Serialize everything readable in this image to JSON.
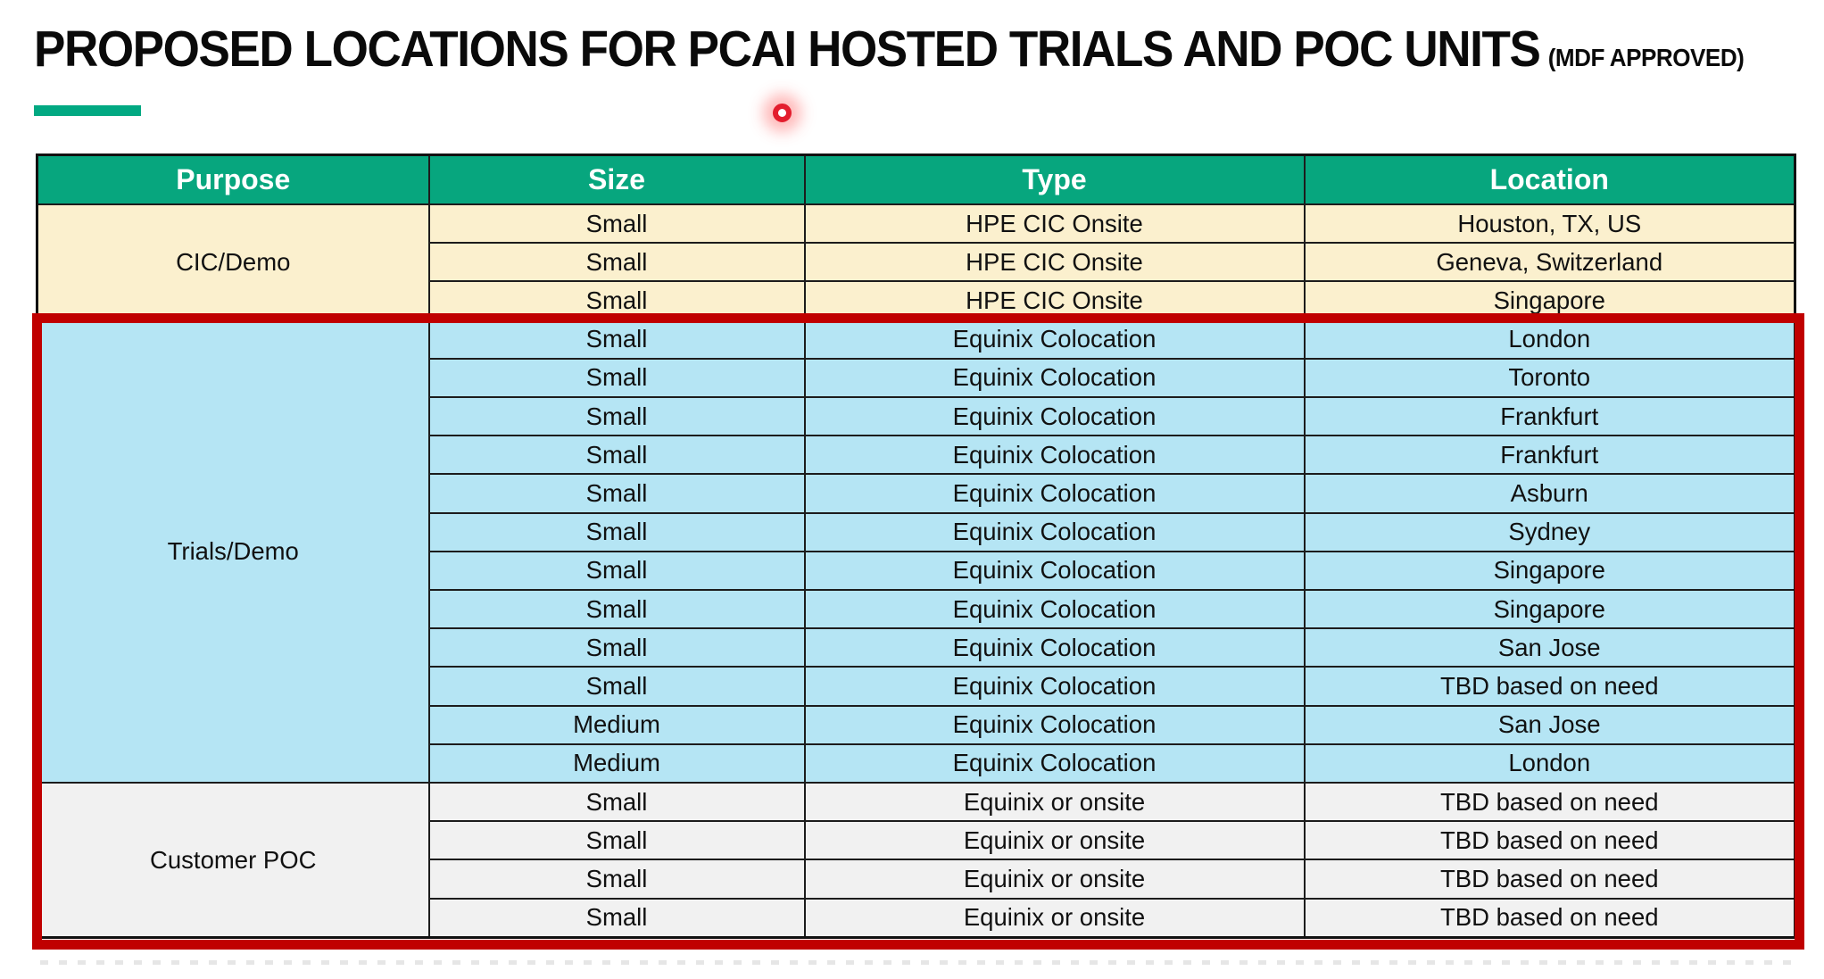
{
  "title": {
    "main": "PROPOSED LOCATIONS FOR PCAI HOSTED TRIALS AND POC UNITS",
    "suffix": "(MDF APPROVED)"
  },
  "colors": {
    "header_bg": "#07a67e",
    "accent_underline": "#01a982",
    "highlight_border": "#c00000",
    "group_cic_bg": "#fbf0ce",
    "group_trials_bg": "#b5e5f4",
    "group_poc_bg": "#f1f1f1"
  },
  "table": {
    "columns": [
      "Purpose",
      "Size",
      "Type",
      "Location"
    ],
    "groups": [
      {
        "purpose": "CIC/Demo",
        "bg": "#fbf0ce",
        "highlighted": false,
        "rows": [
          [
            "Small",
            "HPE CIC Onsite",
            "Houston, TX, US"
          ],
          [
            "Small",
            "HPE CIC Onsite",
            "Geneva, Switzerland"
          ],
          [
            "Small",
            "HPE CIC Onsite",
            "Singapore"
          ]
        ]
      },
      {
        "purpose": "Trials/Demo",
        "bg": "#b5e5f4",
        "highlighted": true,
        "rows": [
          [
            "Small",
            "Equinix Colocation",
            "London"
          ],
          [
            "Small",
            "Equinix Colocation",
            "Toronto"
          ],
          [
            "Small",
            "Equinix Colocation",
            "Frankfurt"
          ],
          [
            "Small",
            "Equinix Colocation",
            "Frankfurt"
          ],
          [
            "Small",
            "Equinix Colocation",
            "Asburn"
          ],
          [
            "Small",
            "Equinix Colocation",
            "Sydney"
          ],
          [
            "Small",
            "Equinix Colocation",
            "Singapore"
          ],
          [
            "Small",
            "Equinix Colocation",
            "Singapore"
          ],
          [
            "Small",
            "Equinix Colocation",
            "San Jose"
          ],
          [
            "Small",
            "Equinix Colocation",
            "TBD based on need"
          ],
          [
            "Medium",
            "Equinix Colocation",
            "San Jose"
          ],
          [
            "Medium",
            "Equinix Colocation",
            "London"
          ]
        ]
      },
      {
        "purpose": "Customer POC",
        "bg": "#f1f1f1",
        "highlighted": true,
        "rows": [
          [
            "Small",
            "Equinix or onsite",
            "TBD based on need"
          ],
          [
            "Small",
            "Equinix or onsite",
            "TBD based on need"
          ],
          [
            "Small",
            "Equinix or onsite",
            "TBD based on need"
          ],
          [
            "Small",
            "Equinix or onsite",
            "TBD based on need"
          ]
        ]
      }
    ]
  }
}
